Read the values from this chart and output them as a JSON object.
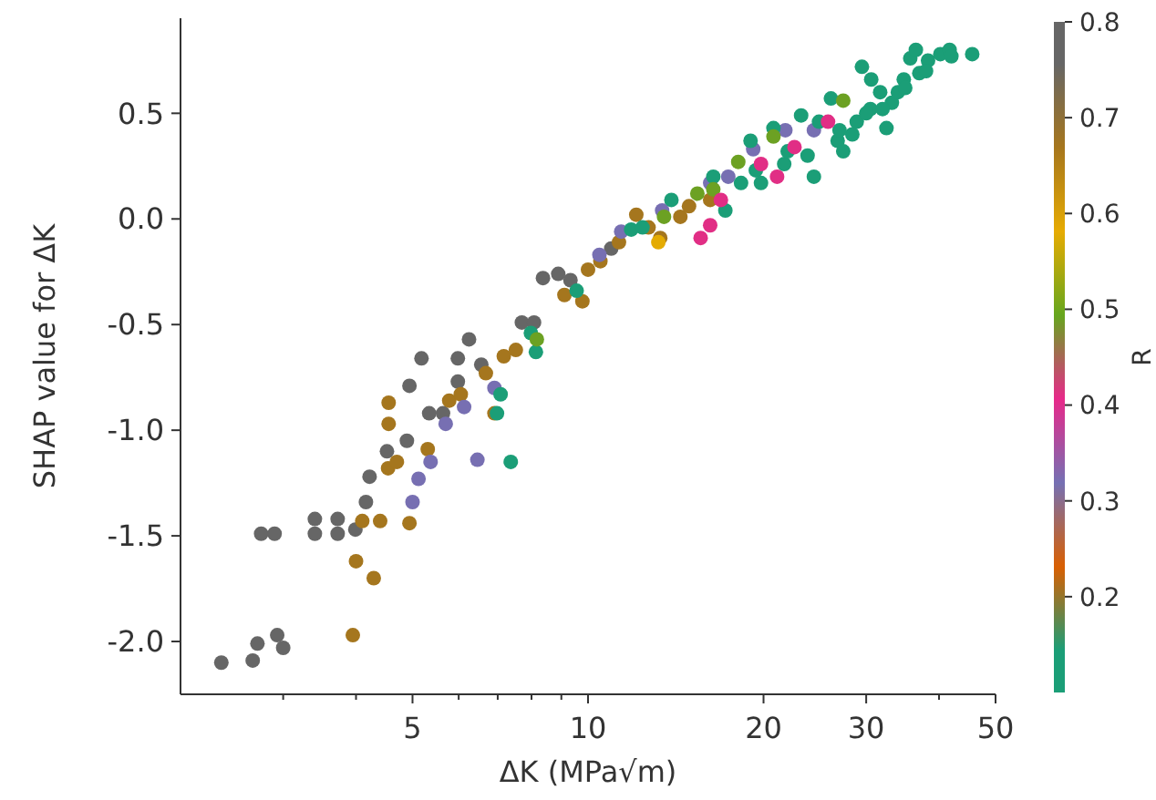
{
  "chart_data": {
    "type": "scatter",
    "xlabel": "ΔK (MPa√m)",
    "ylabel": "SHAP value for ΔK",
    "clabel": "R",
    "log": "x",
    "grid": false,
    "marker": "circle",
    "xlim": [
      2,
      50
    ],
    "ylim": [
      -2.25,
      0.95
    ],
    "xticks": [
      {
        "value": 3,
        "label": null
      },
      {
        "value": 4,
        "label": null
      },
      5,
      {
        "value": 6,
        "label": null
      },
      {
        "value": 7,
        "label": null
      },
      {
        "value": 8,
        "label": null
      },
      {
        "value": 9,
        "label": null
      },
      10,
      20,
      30,
      {
        "value": 40,
        "label": null
      },
      50
    ],
    "yticks": [
      {
        "value": -2,
        "label": "-2.0"
      },
      -1.5,
      {
        "value": -1,
        "label": "-1.0"
      },
      -0.5,
      {
        "value": 0,
        "label": "0.0"
      },
      0.5
    ],
    "clim": [
      0.1,
      0.8
    ],
    "cticks": [
      0.2,
      0.3,
      0.4,
      0.5,
      0.6,
      0.7,
      0.8
    ],
    "x": [
      2.35,
      2.66,
      2.71,
      2.93,
      3.0,
      2.75,
      2.9,
      3.4,
      3.72,
      3.4,
      3.72,
      3.99,
      4.16,
      4.22,
      4.52,
      4.89,
      4.94,
      5.18,
      5.34,
      5.64,
      5.98,
      6.25,
      5.98,
      6.56,
      7.7,
      8.08,
      8.37,
      8.89,
      9.33,
      10.96,
      3.95,
      4.0,
      4.29,
      4.1,
      4.4,
      4.94,
      4.54,
      4.7,
      4.55,
      4.55,
      5.31,
      5.78,
      6.05,
      6.68,
      7.17,
      6.91,
      7.52,
      9.11,
      9.78,
      10.0,
      10.5,
      11.3,
      12.1,
      12.7,
      13.3,
      14.4,
      14.9,
      16.2,
      5.0,
      5.12,
      5.37,
      5.7,
      6.13,
      6.46,
      6.91,
      10.46,
      11.4,
      13.4,
      16.2,
      17.4,
      19.2,
      21.8,
      24.4,
      7.37,
      6.98,
      7.08,
      7.98,
      8.14,
      9.56,
      11.86,
      12.4,
      13.9,
      16.4,
      17.2,
      18.3,
      19.0,
      19.4,
      19.8,
      21.7,
      20.8,
      23.2,
      23.8,
      24.9,
      26.1,
      26.8,
      28.9,
      29.5,
      30.6,
      31.7,
      32.5,
      33.2,
      34.8,
      35.7,
      36.5,
      38.3,
      40.2,
      41.7,
      45.6,
      28.4,
      30.5,
      27.4,
      24.4,
      34,
      37,
      30,
      35,
      32,
      38,
      42,
      27,
      22,
      8.17,
      13.5,
      15.4,
      16.4,
      18.1,
      20.8,
      27.4,
      13.2,
      15.6,
      16.2,
      16.9,
      19.8,
      21.1,
      22.6,
      25.8
    ],
    "values": [
      -2.1,
      -2.09,
      -2.01,
      -1.97,
      -2.03,
      -1.49,
      -1.49,
      -1.42,
      -1.42,
      -1.49,
      -1.49,
      -1.47,
      -1.34,
      -1.22,
      -1.1,
      -1.05,
      -0.79,
      -0.66,
      -0.92,
      -0.92,
      -0.66,
      -0.57,
      -0.77,
      -0.69,
      -0.49,
      -0.49,
      -0.28,
      -0.26,
      -0.29,
      -0.14,
      -1.97,
      -1.62,
      -1.7,
      -1.43,
      -1.43,
      -1.44,
      -1.18,
      -1.15,
      -0.87,
      -0.97,
      -1.09,
      -0.86,
      -0.83,
      -0.73,
      -0.65,
      -0.92,
      -0.62,
      -0.36,
      -0.39,
      -0.24,
      -0.2,
      -0.11,
      0.02,
      -0.04,
      -0.09,
      0.01,
      0.06,
      0.09,
      -1.34,
      -1.23,
      -1.15,
      -0.97,
      -0.89,
      -1.14,
      -0.8,
      -0.17,
      -0.06,
      0.04,
      0.17,
      0.2,
      0.33,
      0.42,
      0.42,
      -1.15,
      -0.92,
      -0.83,
      -0.54,
      -0.63,
      -0.34,
      -0.05,
      -0.04,
      0.09,
      0.2,
      0.04,
      0.17,
      0.37,
      0.23,
      0.17,
      0.26,
      0.43,
      0.49,
      0.3,
      0.46,
      0.57,
      0.37,
      0.46,
      0.72,
      0.66,
      0.6,
      0.43,
      0.55,
      0.66,
      0.76,
      0.8,
      0.75,
      0.78,
      0.8,
      0.78,
      0.4,
      0.52,
      0.32,
      0.2,
      0.6,
      0.69,
      0.5,
      0.62,
      0.52,
      0.7,
      0.77,
      0.42,
      0.32,
      -0.57,
      0.01,
      0.12,
      0.14,
      0.27,
      0.39,
      0.56,
      -0.11,
      -0.09,
      -0.03,
      0.09,
      0.26,
      0.2,
      0.34,
      0.46
    ],
    "cvalues": [
      0.76,
      0.76,
      0.76,
      0.76,
      0.76,
      0.76,
      0.76,
      0.76,
      0.76,
      0.76,
      0.76,
      0.76,
      0.76,
      0.76,
      0.76,
      0.76,
      0.76,
      0.76,
      0.76,
      0.76,
      0.76,
      0.76,
      0.76,
      0.76,
      0.76,
      0.76,
      0.76,
      0.76,
      0.76,
      0.76,
      0.67,
      0.67,
      0.67,
      0.67,
      0.67,
      0.67,
      0.67,
      0.67,
      0.67,
      0.67,
      0.67,
      0.67,
      0.67,
      0.67,
      0.67,
      0.67,
      0.67,
      0.67,
      0.67,
      0.67,
      0.67,
      0.67,
      0.67,
      0.67,
      0.67,
      0.67,
      0.67,
      0.67,
      0.32,
      0.32,
      0.32,
      0.32,
      0.32,
      0.32,
      0.32,
      0.32,
      0.32,
      0.32,
      0.32,
      0.32,
      0.32,
      0.32,
      0.32,
      0.14,
      0.14,
      0.14,
      0.14,
      0.14,
      0.14,
      0.14,
      0.14,
      0.14,
      0.14,
      0.14,
      0.14,
      0.14,
      0.14,
      0.14,
      0.14,
      0.14,
      0.14,
      0.14,
      0.14,
      0.14,
      0.14,
      0.14,
      0.14,
      0.14,
      0.14,
      0.14,
      0.14,
      0.14,
      0.14,
      0.14,
      0.14,
      0.14,
      0.14,
      0.14,
      0.14,
      0.14,
      0.14,
      0.14,
      0.14,
      0.14,
      0.14,
      0.14,
      0.14,
      0.14,
      0.14,
      0.14,
      0.14,
      0.49,
      0.49,
      0.49,
      0.49,
      0.49,
      0.49,
      0.49,
      0.58,
      0.41,
      0.41,
      0.41,
      0.41,
      0.41,
      0.41,
      0.41
    ]
  }
}
